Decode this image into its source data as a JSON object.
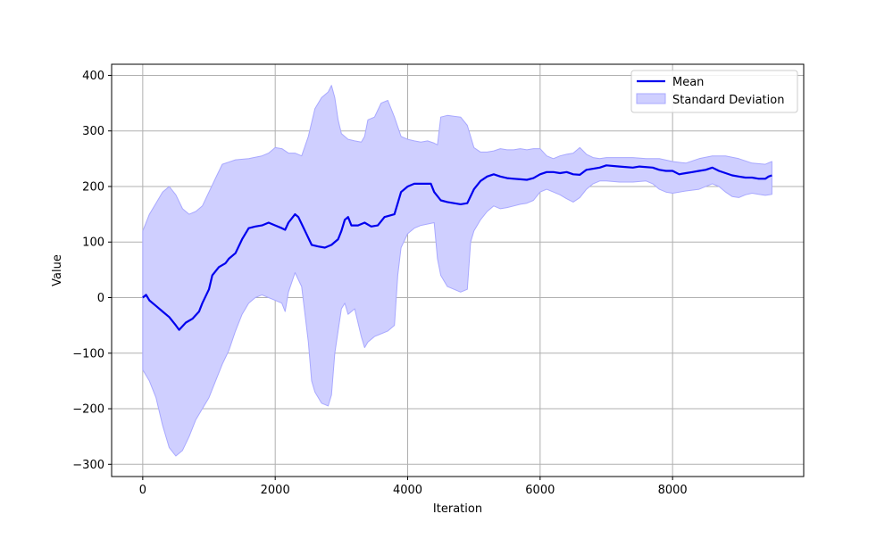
{
  "chart_data": {
    "type": "line",
    "title": "",
    "xlabel": "Iteration",
    "ylabel": "Value",
    "xlim": [
      -470,
      9980
    ],
    "ylim": [
      -322,
      420
    ],
    "x_ticks": [
      0,
      2000,
      4000,
      6000,
      8000
    ],
    "y_ticks": [
      -300,
      -200,
      -100,
      0,
      100,
      200,
      300,
      400
    ],
    "x_tick_labels": [
      "0",
      "2000",
      "4000",
      "6000",
      "8000"
    ],
    "y_tick_labels": [
      "−300",
      "−200",
      "−100",
      "0",
      "100",
      "200",
      "300",
      "400"
    ],
    "grid": true,
    "legend_position": "upper-right",
    "colors": {
      "mean": "#0000ee",
      "band_fill": "#cfcfff",
      "band_edge": "#a8a8ff",
      "grid": "#b0b0b0"
    },
    "series": [
      {
        "name": "Mean",
        "kind": "line",
        "points": [
          [
            0,
            0
          ],
          [
            50,
            5
          ],
          [
            100,
            -5
          ],
          [
            200,
            -15
          ],
          [
            300,
            -25
          ],
          [
            400,
            -35
          ],
          [
            500,
            -50
          ],
          [
            550,
            -58
          ],
          [
            650,
            -45
          ],
          [
            750,
            -38
          ],
          [
            850,
            -25
          ],
          [
            900,
            -10
          ],
          [
            1000,
            15
          ],
          [
            1050,
            40
          ],
          [
            1150,
            55
          ],
          [
            1250,
            62
          ],
          [
            1300,
            70
          ],
          [
            1400,
            80
          ],
          [
            1500,
            105
          ],
          [
            1600,
            125
          ],
          [
            1700,
            128
          ],
          [
            1800,
            130
          ],
          [
            1900,
            135
          ],
          [
            2000,
            130
          ],
          [
            2100,
            125
          ],
          [
            2150,
            122
          ],
          [
            2200,
            135
          ],
          [
            2300,
            150
          ],
          [
            2350,
            145
          ],
          [
            2450,
            120
          ],
          [
            2550,
            95
          ],
          [
            2650,
            92
          ],
          [
            2750,
            90
          ],
          [
            2850,
            95
          ],
          [
            2950,
            105
          ],
          [
            3000,
            120
          ],
          [
            3050,
            140
          ],
          [
            3100,
            145
          ],
          [
            3150,
            130
          ],
          [
            3250,
            130
          ],
          [
            3350,
            135
          ],
          [
            3450,
            128
          ],
          [
            3550,
            130
          ],
          [
            3650,
            145
          ],
          [
            3800,
            150
          ],
          [
            3850,
            170
          ],
          [
            3900,
            190
          ],
          [
            4000,
            200
          ],
          [
            4100,
            205
          ],
          [
            4200,
            205
          ],
          [
            4350,
            205
          ],
          [
            4400,
            190
          ],
          [
            4500,
            175
          ],
          [
            4600,
            172
          ],
          [
            4700,
            170
          ],
          [
            4800,
            168
          ],
          [
            4900,
            170
          ],
          [
            5000,
            195
          ],
          [
            5100,
            210
          ],
          [
            5200,
            218
          ],
          [
            5300,
            222
          ],
          [
            5400,
            218
          ],
          [
            5500,
            215
          ],
          [
            5600,
            214
          ],
          [
            5700,
            213
          ],
          [
            5800,
            212
          ],
          [
            5900,
            215
          ],
          [
            6000,
            222
          ],
          [
            6100,
            226
          ],
          [
            6200,
            226
          ],
          [
            6300,
            224
          ],
          [
            6400,
            226
          ],
          [
            6500,
            222
          ],
          [
            6600,
            221
          ],
          [
            6700,
            230
          ],
          [
            6800,
            232
          ],
          [
            6900,
            234
          ],
          [
            7000,
            238
          ],
          [
            7200,
            236
          ],
          [
            7400,
            234
          ],
          [
            7500,
            236
          ],
          [
            7700,
            234
          ],
          [
            7800,
            230
          ],
          [
            7900,
            228
          ],
          [
            8000,
            228
          ],
          [
            8100,
            222
          ],
          [
            8200,
            224
          ],
          [
            8300,
            226
          ],
          [
            8400,
            228
          ],
          [
            8500,
            230
          ],
          [
            8600,
            234
          ],
          [
            8700,
            228
          ],
          [
            8800,
            224
          ],
          [
            8900,
            220
          ],
          [
            9000,
            218
          ],
          [
            9100,
            216
          ],
          [
            9200,
            216
          ],
          [
            9300,
            214
          ],
          [
            9400,
            214
          ],
          [
            9450,
            218
          ],
          [
            9500,
            220
          ]
        ]
      },
      {
        "name": "Standard Deviation",
        "kind": "band",
        "upper": [
          [
            0,
            120
          ],
          [
            100,
            150
          ],
          [
            200,
            170
          ],
          [
            300,
            190
          ],
          [
            400,
            200
          ],
          [
            500,
            185
          ],
          [
            600,
            160
          ],
          [
            700,
            150
          ],
          [
            800,
            155
          ],
          [
            900,
            165
          ],
          [
            1000,
            190
          ],
          [
            1100,
            215
          ],
          [
            1200,
            240
          ],
          [
            1400,
            248
          ],
          [
            1600,
            250
          ],
          [
            1800,
            255
          ],
          [
            1900,
            260
          ],
          [
            2000,
            270
          ],
          [
            2100,
            268
          ],
          [
            2200,
            260
          ],
          [
            2300,
            260
          ],
          [
            2400,
            255
          ],
          [
            2500,
            290
          ],
          [
            2600,
            340
          ],
          [
            2700,
            360
          ],
          [
            2800,
            370
          ],
          [
            2850,
            382
          ],
          [
            2900,
            360
          ],
          [
            2950,
            320
          ],
          [
            3000,
            295
          ],
          [
            3100,
            285
          ],
          [
            3200,
            282
          ],
          [
            3300,
            280
          ],
          [
            3350,
            290
          ],
          [
            3400,
            320
          ],
          [
            3500,
            325
          ],
          [
            3600,
            350
          ],
          [
            3700,
            355
          ],
          [
            3800,
            325
          ],
          [
            3900,
            290
          ],
          [
            4000,
            285
          ],
          [
            4100,
            282
          ],
          [
            4200,
            280
          ],
          [
            4300,
            282
          ],
          [
            4400,
            278
          ],
          [
            4450,
            275
          ],
          [
            4500,
            325
          ],
          [
            4600,
            328
          ],
          [
            4800,
            325
          ],
          [
            4900,
            310
          ],
          [
            5000,
            270
          ],
          [
            5100,
            262
          ],
          [
            5200,
            262
          ],
          [
            5300,
            264
          ],
          [
            5400,
            268
          ],
          [
            5500,
            266
          ],
          [
            5600,
            266
          ],
          [
            5700,
            268
          ],
          [
            5800,
            266
          ],
          [
            5900,
            268
          ],
          [
            6000,
            268
          ],
          [
            6100,
            255
          ],
          [
            6200,
            250
          ],
          [
            6300,
            255
          ],
          [
            6400,
            258
          ],
          [
            6500,
            260
          ],
          [
            6600,
            270
          ],
          [
            6700,
            258
          ],
          [
            6800,
            252
          ],
          [
            6900,
            250
          ],
          [
            7000,
            252
          ],
          [
            7200,
            252
          ],
          [
            7400,
            252
          ],
          [
            7600,
            250
          ],
          [
            7800,
            250
          ],
          [
            8000,
            245
          ],
          [
            8200,
            242
          ],
          [
            8400,
            250
          ],
          [
            8600,
            255
          ],
          [
            8800,
            255
          ],
          [
            9000,
            250
          ],
          [
            9200,
            242
          ],
          [
            9400,
            240
          ],
          [
            9500,
            245
          ]
        ],
        "lower": [
          [
            0,
            -130
          ],
          [
            100,
            -150
          ],
          [
            200,
            -180
          ],
          [
            300,
            -230
          ],
          [
            400,
            -270
          ],
          [
            500,
            -285
          ],
          [
            600,
            -275
          ],
          [
            700,
            -250
          ],
          [
            800,
            -220
          ],
          [
            900,
            -200
          ],
          [
            1000,
            -180
          ],
          [
            1100,
            -150
          ],
          [
            1200,
            -120
          ],
          [
            1300,
            -95
          ],
          [
            1400,
            -60
          ],
          [
            1500,
            -30
          ],
          [
            1600,
            -10
          ],
          [
            1700,
            0
          ],
          [
            1800,
            5
          ],
          [
            1900,
            0
          ],
          [
            2000,
            -5
          ],
          [
            2100,
            -10
          ],
          [
            2150,
            -25
          ],
          [
            2200,
            10
          ],
          [
            2300,
            45
          ],
          [
            2400,
            20
          ],
          [
            2500,
            -80
          ],
          [
            2550,
            -150
          ],
          [
            2600,
            -170
          ],
          [
            2700,
            -190
          ],
          [
            2800,
            -195
          ],
          [
            2850,
            -175
          ],
          [
            2900,
            -100
          ],
          [
            3000,
            -20
          ],
          [
            3050,
            -10
          ],
          [
            3100,
            -30
          ],
          [
            3200,
            -20
          ],
          [
            3300,
            -70
          ],
          [
            3350,
            -90
          ],
          [
            3400,
            -80
          ],
          [
            3500,
            -70
          ],
          [
            3600,
            -65
          ],
          [
            3700,
            -60
          ],
          [
            3800,
            -50
          ],
          [
            3850,
            40
          ],
          [
            3900,
            90
          ],
          [
            4000,
            115
          ],
          [
            4100,
            125
          ],
          [
            4200,
            130
          ],
          [
            4400,
            135
          ],
          [
            4450,
            70
          ],
          [
            4500,
            40
          ],
          [
            4600,
            20
          ],
          [
            4700,
            15
          ],
          [
            4800,
            10
          ],
          [
            4900,
            15
          ],
          [
            4950,
            100
          ],
          [
            5000,
            120
          ],
          [
            5100,
            140
          ],
          [
            5200,
            155
          ],
          [
            5300,
            165
          ],
          [
            5400,
            160
          ],
          [
            5500,
            162
          ],
          [
            5600,
            165
          ],
          [
            5700,
            168
          ],
          [
            5800,
            170
          ],
          [
            5900,
            175
          ],
          [
            6000,
            190
          ],
          [
            6100,
            195
          ],
          [
            6200,
            190
          ],
          [
            6300,
            185
          ],
          [
            6400,
            178
          ],
          [
            6500,
            172
          ],
          [
            6600,
            180
          ],
          [
            6700,
            195
          ],
          [
            6800,
            205
          ],
          [
            6900,
            210
          ],
          [
            7000,
            210
          ],
          [
            7200,
            208
          ],
          [
            7400,
            208
          ],
          [
            7600,
            210
          ],
          [
            7700,
            205
          ],
          [
            7800,
            195
          ],
          [
            7900,
            190
          ],
          [
            8000,
            188
          ],
          [
            8200,
            192
          ],
          [
            8400,
            195
          ],
          [
            8600,
            205
          ],
          [
            8700,
            200
          ],
          [
            8800,
            190
          ],
          [
            8900,
            182
          ],
          [
            9000,
            180
          ],
          [
            9100,
            185
          ],
          [
            9200,
            188
          ],
          [
            9300,
            186
          ],
          [
            9400,
            184
          ],
          [
            9500,
            186
          ]
        ]
      }
    ]
  }
}
